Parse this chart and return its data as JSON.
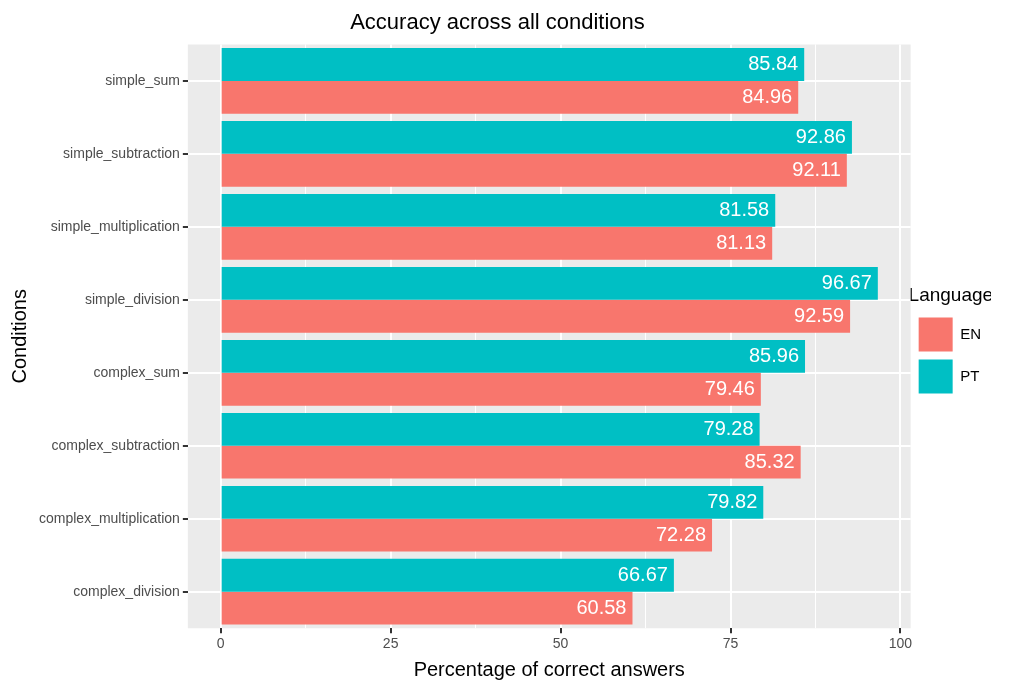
{
  "chart_data": {
    "type": "bar",
    "orientation": "horizontal",
    "title": "Accuracy across all conditions",
    "xlabel": "Percentage of correct answers",
    "ylabel": "Conditions",
    "legend_title": "Language",
    "legend": "right",
    "grid": true,
    "data_labels": true,
    "categories": [
      "simple_sum",
      "simple_subtraction",
      "simple_multiplication",
      "simple_division",
      "complex_sum",
      "complex_subtraction",
      "complex_multiplication",
      "complex_division"
    ],
    "series": [
      {
        "name": "EN",
        "color": "#f8766d",
        "values": [
          84.96,
          92.11,
          81.13,
          92.59,
          79.46,
          85.32,
          72.28,
          60.58
        ]
      },
      {
        "name": "PT",
        "color": "#00bfc4",
        "values": [
          85.84,
          92.86,
          81.58,
          96.67,
          85.96,
          79.28,
          79.82,
          66.67
        ]
      }
    ],
    "xlim": [
      -4.83,
      101.5
    ],
    "xticks": [
      0,
      {
        "value": 12.5,
        "label": null
      },
      25,
      {
        "value": 37.5,
        "label": null
      },
      50,
      {
        "value": 62.5,
        "label": null
      },
      75,
      {
        "value": 87.5,
        "label": null
      },
      100
    ]
  }
}
